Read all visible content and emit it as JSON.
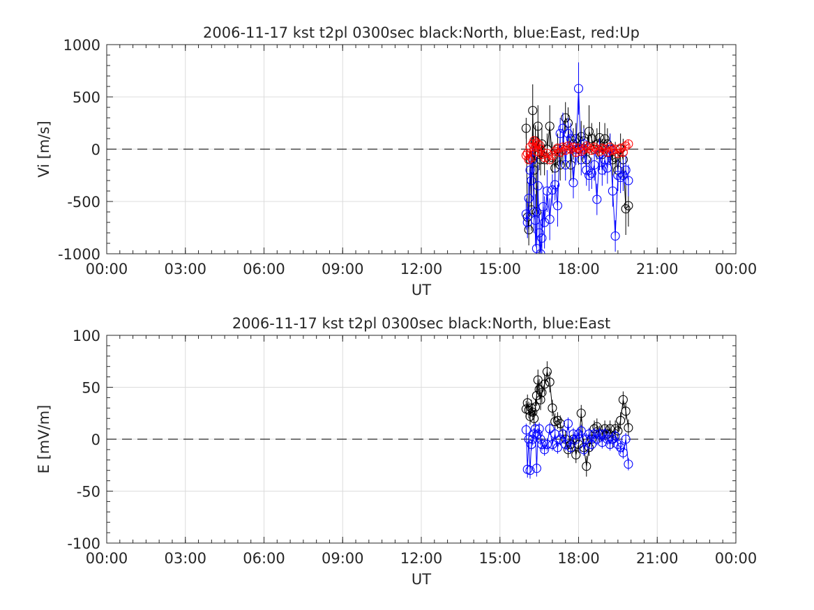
{
  "chart_data": [
    {
      "type": "scatter",
      "title": "2006-11-17 kst t2pl 0300sec black:North, blue:East, red:Up",
      "xlabel": "UT",
      "ylabel": "Vi [m/s]",
      "xlim": [
        0,
        24
      ],
      "ylim": [
        -1000,
        1000
      ],
      "xticks": [
        0,
        3,
        6,
        9,
        12,
        15,
        18,
        21,
        24
      ],
      "xticklabels": [
        "00:00",
        "03:00",
        "06:00",
        "09:00",
        "12:00",
        "15:00",
        "18:00",
        "21:00",
        "00:00"
      ],
      "yticks": [
        -1000,
        -500,
        0,
        500,
        1000
      ],
      "yticklabels": [
        "-1000",
        "-500",
        "0",
        "500",
        "1000"
      ],
      "grid": true,
      "zero_line": "dashed",
      "series": [
        {
          "name": "North",
          "color": "#000000",
          "x": [
            16.0,
            16.05,
            16.1,
            16.15,
            16.2,
            16.25,
            16.3,
            16.35,
            16.4,
            16.45,
            16.5,
            16.55,
            16.6,
            16.7,
            16.8,
            16.9,
            17.0,
            17.1,
            17.2,
            17.3,
            17.4,
            17.5,
            17.6,
            17.7,
            17.8,
            17.9,
            18.0,
            18.1,
            18.2,
            18.3,
            18.4,
            18.5,
            18.6,
            18.7,
            18.8,
            18.9,
            19.0,
            19.1,
            19.2,
            19.3,
            19.4,
            19.5,
            19.6,
            19.7,
            19.8,
            19.9
          ],
          "y": [
            200,
            -650,
            -770,
            -100,
            -580,
            370,
            -200,
            80,
            -600,
            220,
            -50,
            -100,
            50,
            -100,
            0,
            220,
            -80,
            -180,
            0,
            -150,
            0,
            300,
            250,
            -150,
            50,
            100,
            0,
            120,
            80,
            -100,
            170,
            100,
            0,
            50,
            110,
            -50,
            100,
            50,
            0,
            -100,
            -80,
            -200,
            0,
            -100,
            -570,
            -540
          ],
          "err": [
            100,
            150,
            150,
            200,
            200,
            250,
            250,
            150,
            150,
            200,
            150,
            150,
            150,
            150,
            150,
            200,
            150,
            150,
            150,
            150,
            150,
            150,
            150,
            150,
            150,
            150,
            150,
            150,
            150,
            150,
            250,
            150,
            150,
            150,
            150,
            150,
            150,
            150,
            150,
            150,
            150,
            150,
            150,
            200,
            250,
            200
          ]
        },
        {
          "name": "East",
          "color": "#0000ff",
          "x": [
            16.0,
            16.05,
            16.1,
            16.15,
            16.2,
            16.25,
            16.3,
            16.35,
            16.4,
            16.45,
            16.5,
            16.55,
            16.6,
            16.65,
            16.7,
            16.8,
            16.9,
            17.0,
            17.1,
            17.2,
            17.3,
            17.4,
            17.5,
            17.6,
            17.7,
            17.8,
            17.9,
            18.0,
            18.1,
            18.2,
            18.3,
            18.4,
            18.5,
            18.6,
            18.7,
            18.8,
            18.9,
            19.0,
            19.1,
            19.2,
            19.3,
            19.4,
            19.5,
            19.6,
            19.7,
            19.8,
            19.9
          ],
          "y": [
            -620,
            -700,
            -470,
            -200,
            -300,
            -100,
            -600,
            -680,
            -950,
            -350,
            -800,
            -1000,
            -850,
            -550,
            -700,
            -400,
            -670,
            -390,
            -340,
            -540,
            150,
            200,
            -150,
            150,
            100,
            -320,
            0,
            580,
            -100,
            50,
            -200,
            -250,
            -230,
            -150,
            -480,
            -50,
            -200,
            -100,
            -180,
            0,
            -400,
            -830,
            -250,
            -270,
            -250,
            -200,
            -300
          ],
          "err": [
            150,
            150,
            150,
            150,
            200,
            150,
            200,
            250,
            300,
            200,
            250,
            300,
            250,
            200,
            250,
            200,
            200,
            150,
            150,
            200,
            150,
            150,
            150,
            150,
            150,
            150,
            150,
            250,
            150,
            150,
            150,
            150,
            150,
            150,
            150,
            150,
            150,
            150,
            150,
            150,
            150,
            150,
            150,
            150,
            150,
            150,
            150
          ]
        },
        {
          "name": "Up",
          "color": "#ff0000",
          "x": [
            16.0,
            16.05,
            16.1,
            16.15,
            16.2,
            16.25,
            16.3,
            16.35,
            16.4,
            16.45,
            16.5,
            16.55,
            16.6,
            16.7,
            16.8,
            16.9,
            17.0,
            17.1,
            17.2,
            17.3,
            17.4,
            17.5,
            17.6,
            17.7,
            17.8,
            17.9,
            18.0,
            18.1,
            18.2,
            18.3,
            18.4,
            18.5,
            18.6,
            18.7,
            18.8,
            18.9,
            19.0,
            19.1,
            19.2,
            19.3,
            19.4,
            19.5,
            19.6,
            19.7,
            19.8,
            19.9
          ],
          "y": [
            -60,
            -40,
            -100,
            20,
            -80,
            50,
            80,
            20,
            60,
            -20,
            40,
            0,
            -50,
            -80,
            -40,
            -100,
            -60,
            -20,
            10,
            -30,
            20,
            -10,
            30,
            0,
            20,
            -30,
            10,
            -20,
            0,
            30,
            10,
            -10,
            20,
            0,
            -20,
            10,
            0,
            -30,
            20,
            -10,
            0,
            -40,
            10,
            -30,
            30,
            50
          ],
          "err": [
            40,
            40,
            40,
            40,
            40,
            40,
            40,
            40,
            40,
            40,
            40,
            40,
            40,
            40,
            40,
            40,
            40,
            40,
            40,
            40,
            40,
            40,
            40,
            40,
            40,
            40,
            40,
            40,
            40,
            40,
            40,
            40,
            40,
            40,
            40,
            40,
            40,
            40,
            40,
            40,
            40,
            40,
            40,
            40,
            40,
            40
          ]
        }
      ]
    },
    {
      "type": "scatter",
      "title": "2006-11-17 kst t2pl 0300sec black:North, blue:East",
      "xlabel": "UT",
      "ylabel": "E [mV/m]",
      "xlim": [
        0,
        24
      ],
      "ylim": [
        -100,
        100
      ],
      "xticks": [
        0,
        3,
        6,
        9,
        12,
        15,
        18,
        21,
        24
      ],
      "xticklabels": [
        "00:00",
        "03:00",
        "06:00",
        "09:00",
        "12:00",
        "15:00",
        "18:00",
        "21:00",
        "00:00"
      ],
      "yticks": [
        -100,
        -50,
        0,
        50,
        100
      ],
      "yticklabels": [
        "-100",
        "-50",
        "0",
        "50",
        "100"
      ],
      "grid": true,
      "zero_line": "dashed",
      "series": [
        {
          "name": "North",
          "color": "#000000",
          "x": [
            16.0,
            16.05,
            16.1,
            16.15,
            16.2,
            16.25,
            16.3,
            16.35,
            16.4,
            16.45,
            16.5,
            16.55,
            16.6,
            16.7,
            16.8,
            16.9,
            17.0,
            17.1,
            17.2,
            17.3,
            17.4,
            17.5,
            17.6,
            17.7,
            17.8,
            17.9,
            18.0,
            18.1,
            18.2,
            18.3,
            18.4,
            18.5,
            18.6,
            18.7,
            18.8,
            18.9,
            19.0,
            19.1,
            19.2,
            19.3,
            19.4,
            19.5,
            19.6,
            19.7,
            19.8,
            19.9
          ],
          "y": [
            29,
            35,
            28,
            22,
            30,
            26,
            20,
            31,
            42,
            57,
            48,
            38,
            45,
            53,
            65,
            55,
            30,
            17,
            18,
            15,
            5,
            0,
            -10,
            -5,
            0,
            -15,
            -5,
            25,
            -8,
            -26,
            -8,
            0,
            10,
            12,
            5,
            5,
            10,
            5,
            10,
            0,
            10,
            8,
            18,
            38,
            27,
            11
          ],
          "err": [
            8,
            8,
            8,
            8,
            8,
            8,
            8,
            8,
            10,
            10,
            10,
            10,
            10,
            10,
            10,
            10,
            8,
            8,
            8,
            8,
            8,
            8,
            8,
            8,
            8,
            8,
            8,
            8,
            8,
            10,
            8,
            8,
            8,
            8,
            8,
            8,
            8,
            8,
            8,
            8,
            8,
            8,
            8,
            8,
            8,
            8
          ]
        },
        {
          "name": "East",
          "color": "#0000ff",
          "x": [
            16.0,
            16.05,
            16.1,
            16.15,
            16.2,
            16.25,
            16.3,
            16.35,
            16.4,
            16.45,
            16.5,
            16.55,
            16.6,
            16.7,
            16.8,
            16.9,
            17.0,
            17.1,
            17.2,
            17.3,
            17.4,
            17.5,
            17.6,
            17.7,
            17.8,
            17.9,
            18.0,
            18.1,
            18.2,
            18.3,
            18.4,
            18.5,
            18.6,
            18.7,
            18.8,
            18.9,
            19.0,
            19.1,
            19.2,
            19.3,
            19.4,
            19.5,
            19.6,
            19.7,
            19.8,
            19.9
          ],
          "y": [
            9,
            -29,
            0,
            -30,
            -5,
            0,
            5,
            10,
            -28,
            5,
            10,
            0,
            -5,
            -10,
            -5,
            10,
            -5,
            5,
            -8,
            0,
            5,
            -5,
            15,
            -8,
            5,
            0,
            5,
            8,
            -10,
            0,
            5,
            -5,
            5,
            0,
            5,
            -3,
            5,
            0,
            -5,
            0,
            3,
            -5,
            -8,
            -13,
            0,
            -24
          ],
          "err": [
            6,
            8,
            6,
            8,
            6,
            6,
            6,
            6,
            8,
            6,
            6,
            6,
            6,
            6,
            6,
            6,
            6,
            6,
            6,
            6,
            6,
            6,
            6,
            6,
            6,
            6,
            6,
            6,
            6,
            6,
            6,
            6,
            6,
            6,
            6,
            6,
            6,
            6,
            6,
            6,
            6,
            6,
            6,
            6,
            6,
            6
          ]
        }
      ]
    }
  ]
}
